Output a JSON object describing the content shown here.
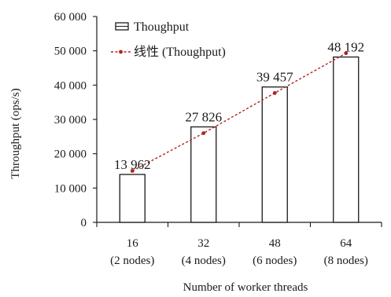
{
  "chart_data": {
    "type": "bar",
    "categories": [
      "16",
      "32",
      "48",
      "64"
    ],
    "category_sublabels": [
      "(2 nodes)",
      "(4 nodes)",
      "(6 nodes)",
      "(8 nodes)"
    ],
    "series": [
      {
        "name": "Thoughput",
        "kind": "bar",
        "values": [
          13962,
          27826,
          39457,
          48192
        ],
        "data_labels": [
          "13 962",
          "27 826",
          "39 457",
          "48 192"
        ]
      },
      {
        "name": "线性 (Thoughput)",
        "kind": "linear-trendline",
        "values": [
          15000,
          26000,
          37700,
          49300
        ]
      }
    ],
    "xlabel": "Number of worker threads",
    "ylabel": "Throughput (ops/s)",
    "ylim": [
      0,
      60000
    ],
    "yticks": [
      0,
      10000,
      20000,
      30000,
      40000,
      50000,
      60000
    ],
    "ytick_labels": [
      "0",
      "10 000",
      "20 000",
      "30 000",
      "40 000",
      "50 000",
      "60 000"
    ],
    "grid": false,
    "legend_position": "top-left",
    "colors": {
      "bar_fill": "#ffffff",
      "bar_stroke": "#1a1a1a",
      "trend": "#b22222",
      "axis": "#1a1a1a"
    }
  }
}
